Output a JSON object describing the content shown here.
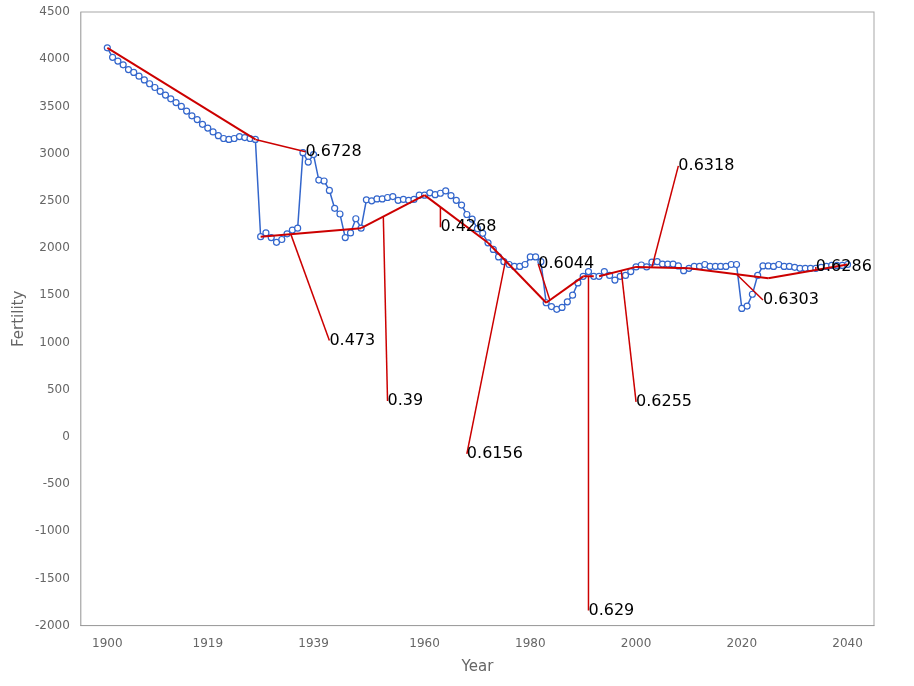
{
  "chart_data": {
    "type": "line",
    "xlabel": "Year",
    "ylabel": "Fertility",
    "xlim": [
      1895,
      2045
    ],
    "ylim": [
      -2000,
      4500
    ],
    "xticks": [
      1900,
      1919,
      1939,
      1960,
      1980,
      2000,
      2020,
      2040
    ],
    "yticks": [
      -2000,
      -1500,
      -1000,
      -500,
      0,
      500,
      1000,
      1500,
      2000,
      2500,
      3000,
      3500,
      4000,
      4500
    ],
    "grid": false,
    "x": [
      1900,
      1901,
      1902,
      1903,
      1904,
      1905,
      1906,
      1907,
      1908,
      1909,
      1910,
      1911,
      1912,
      1913,
      1914,
      1915,
      1916,
      1917,
      1918,
      1919,
      1920,
      1921,
      1922,
      1923,
      1924,
      1925,
      1926,
      1927,
      1928,
      1929,
      1930,
      1931,
      1932,
      1933,
      1934,
      1935,
      1936,
      1937,
      1938,
      1939,
      1940,
      1941,
      1942,
      1943,
      1944,
      1945,
      1946,
      1947,
      1948,
      1949,
      1950,
      1951,
      1952,
      1953,
      1954,
      1955,
      1956,
      1957,
      1958,
      1959,
      1960,
      1961,
      1962,
      1963,
      1964,
      1965,
      1966,
      1967,
      1968,
      1969,
      1970,
      1971,
      1972,
      1973,
      1974,
      1975,
      1976,
      1977,
      1978,
      1979,
      1980,
      1981,
      1982,
      1983,
      1984,
      1985,
      1986,
      1987,
      1988,
      1989,
      1990,
      1991,
      1992,
      1993,
      1994,
      1995,
      1996,
      1997,
      1998,
      1999,
      2000,
      2001,
      2002,
      2003,
      2004,
      2005,
      2006,
      2007,
      2008,
      2009,
      2010,
      2011,
      2012,
      2013,
      2014,
      2015,
      2016,
      2017,
      2018,
      2019,
      2020,
      2021,
      2022,
      2023,
      2024,
      2025,
      2026,
      2027,
      2028,
      2029,
      2030,
      2031,
      2032,
      2033,
      2034,
      2035,
      2036,
      2037,
      2038,
      2039,
      2040
    ],
    "series": [
      {
        "color": "#3366CC",
        "marker": "circle",
        "values": [
          4120,
          4020,
          3980,
          3940,
          3890,
          3860,
          3820,
          3780,
          3740,
          3700,
          3660,
          3620,
          3580,
          3540,
          3500,
          3450,
          3400,
          3360,
          3310,
          3270,
          3230,
          3190,
          3160,
          3150,
          3160,
          3180,
          3170,
          3160,
          3150,
          2120,
          2160,
          2110,
          2060,
          2090,
          2150,
          2190,
          2210,
          3010,
          2910,
          2990,
          2720,
          2710,
          2610,
          2420,
          2360,
          2110,
          2160,
          2310,
          2210,
          2510,
          2500,
          2520,
          2520,
          2535,
          2545,
          2505,
          2515,
          2505,
          2515,
          2560,
          2560,
          2585,
          2565,
          2580,
          2605,
          2555,
          2505,
          2455,
          2355,
          2305,
          2205,
          2155,
          2055,
          1985,
          1905,
          1855,
          1825,
          1805,
          1805,
          1825,
          1905,
          1905,
          1855,
          1420,
          1380,
          1350,
          1370,
          1430,
          1500,
          1630,
          1700,
          1750,
          1700,
          1700,
          1750,
          1710,
          1660,
          1700,
          1710,
          1750,
          1800,
          1820,
          1800,
          1850,
          1855,
          1830,
          1830,
          1830,
          1810,
          1760,
          1785,
          1805,
          1805,
          1825,
          1805,
          1805,
          1805,
          1805,
          1825,
          1825,
          1360,
          1385,
          1510,
          1710,
          1810,
          1810,
          1805,
          1825,
          1805,
          1805,
          1795,
          1785,
          1785,
          1785,
          1785,
          1795,
          1805,
          1815,
          1815,
          1815,
          1825
        ]
      }
    ],
    "segments": [
      {
        "color": "#CC0000",
        "x": [
          1900,
          1928
        ],
        "y": [
          4120,
          3150
        ]
      },
      {
        "color": "#CC0000",
        "x": [
          1929,
          1948
        ],
        "y": [
          2120,
          2210
        ]
      },
      {
        "color": "#CC0000",
        "x": [
          1948,
          1960
        ],
        "y": [
          2210,
          2560
        ]
      },
      {
        "color": "#CC0000",
        "x": [
          1960,
          1972
        ],
        "y": [
          2560,
          2055
        ]
      },
      {
        "color": "#CC0000",
        "x": [
          1972,
          1983
        ],
        "y": [
          2055,
          1420
        ]
      },
      {
        "color": "#CC0000",
        "x": [
          1983,
          1990
        ],
        "y": [
          1420,
          1700
        ]
      },
      {
        "color": "#CC0000",
        "x": [
          1990,
          1992
        ],
        "y": [
          1700,
          1700
        ]
      },
      {
        "color": "#CC0000",
        "x": [
          1993,
          2000
        ],
        "y": [
          1700,
          1800
        ]
      },
      {
        "color": "#CC0000",
        "x": [
          2000,
          2010
        ],
        "y": [
          1800,
          1785
        ]
      },
      {
        "color": "#CC0000",
        "x": [
          2010,
          2025
        ],
        "y": [
          1785,
          1680
        ]
      },
      {
        "color": "#CC0000",
        "x": [
          2025,
          2040
        ],
        "y": [
          1680,
          1825
        ]
      }
    ],
    "annotations": [
      {
        "text": "0.6728",
        "x": 1937.5,
        "y": 3020,
        "leader_from": [
          1928,
          3150
        ],
        "color": "#CC0000"
      },
      {
        "text": "0.473",
        "x": 1942,
        "y": 1020,
        "leader_from": [
          1934.7,
          2147
        ],
        "color": "#CC0000"
      },
      {
        "text": "0.39",
        "x": 1953,
        "y": 380,
        "leader_from": [
          1952.2,
          2332.5
        ],
        "color": "#CC0000"
      },
      {
        "text": "0.4268",
        "x": 1963,
        "y": 2220,
        "leader_from": [
          1963,
          2433.75
        ],
        "color": "#CC0000"
      },
      {
        "text": "0.6156",
        "x": 1968,
        "y": -180,
        "leader_from": [
          1975.3,
          1864.5
        ],
        "color": "#CC0000"
      },
      {
        "text": "0.6044",
        "x": 1981.5,
        "y": 1830,
        "leader_from": [
          1983.7,
          1448
        ],
        "color": "#CC0000"
      },
      {
        "text": "0.629",
        "x": 1991,
        "y": -1840,
        "leader_from": [
          1991,
          1700
        ],
        "color": "#CC0000"
      },
      {
        "text": "0.6255",
        "x": 2000,
        "y": 370,
        "leader_from": [
          1997.2,
          1760
        ],
        "color": "#CC0000"
      },
      {
        "text": "0.6318",
        "x": 2008,
        "y": 2870,
        "leader_from": [
          2003,
          1795.5
        ],
        "color": "#CC0000"
      },
      {
        "text": "0.6303",
        "x": 2024,
        "y": 1450,
        "leader_from": [
          2019,
          1722
        ],
        "color": "#CC0000"
      },
      {
        "text": "0.6286",
        "x": 2034,
        "y": 1800,
        "leader_from": [
          2034,
          1767
        ],
        "color": "#CC0000"
      }
    ]
  }
}
